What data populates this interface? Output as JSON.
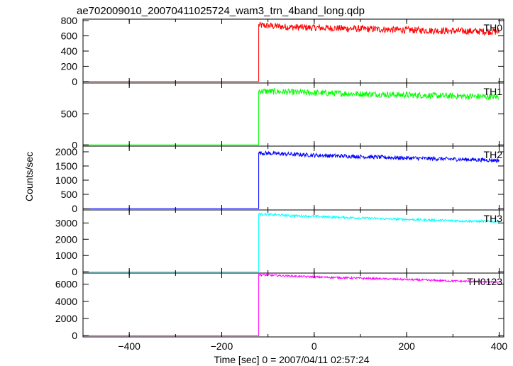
{
  "chart_data": {
    "type": "line",
    "title": "ae702009010_20070411025724_wam3_trn_4band_long.qdp",
    "xlabel": "Time [sec] 0 = 2007/04/11 02:57:24",
    "ylabel": "Counts/sec",
    "xlim": [
      -500,
      410
    ],
    "xticks": [
      -400,
      -200,
      0,
      200,
      400
    ],
    "grid": false,
    "legend": "none",
    "onset_time": -120,
    "t_start": -500,
    "t_end": 400,
    "panels": [
      {
        "name": "TH0",
        "color": "#ff0000",
        "ylim": [
          -20,
          820
        ],
        "yticks": [
          0,
          200,
          400,
          600,
          800
        ],
        "background_level": 0,
        "points": [
          {
            "x": -120,
            "y": 740
          },
          {
            "x": -50,
            "y": 715
          },
          {
            "x": 50,
            "y": 700
          },
          {
            "x": 150,
            "y": 685
          },
          {
            "x": 250,
            "y": 670
          },
          {
            "x": 350,
            "y": 660
          },
          {
            "x": 400,
            "y": 655
          }
        ],
        "noise": 45
      },
      {
        "name": "TH1",
        "color": "#00ff00",
        "ylim": [
          -20,
          1000
        ],
        "yticks": [
          0,
          500
        ],
        "background_level": 0,
        "points": [
          {
            "x": -120,
            "y": 870
          },
          {
            "x": 0,
            "y": 840
          },
          {
            "x": 100,
            "y": 825
          },
          {
            "x": 200,
            "y": 805
          },
          {
            "x": 300,
            "y": 790
          },
          {
            "x": 400,
            "y": 775
          }
        ],
        "noise": 50
      },
      {
        "name": "TH2",
        "color": "#0000ff",
        "ylim": [
          -50,
          2200
        ],
        "yticks": [
          0,
          500,
          1000,
          1500,
          2000
        ],
        "background_level": 0,
        "points": [
          {
            "x": -120,
            "y": 1960
          },
          {
            "x": 0,
            "y": 1880
          },
          {
            "x": 100,
            "y": 1830
          },
          {
            "x": 200,
            "y": 1780
          },
          {
            "x": 300,
            "y": 1740
          },
          {
            "x": 400,
            "y": 1700
          }
        ],
        "noise": 70
      },
      {
        "name": "TH3",
        "color": "#00ffff",
        "ylim": [
          -80,
          3800
        ],
        "yticks": [
          0,
          1000,
          2000,
          3000
        ],
        "background_level": 0,
        "points": [
          {
            "x": -120,
            "y": 3550
          },
          {
            "x": -50,
            "y": 3450
          },
          {
            "x": 50,
            "y": 3350
          },
          {
            "x": 150,
            "y": 3260
          },
          {
            "x": 250,
            "y": 3180
          },
          {
            "x": 350,
            "y": 3100
          },
          {
            "x": 400,
            "y": 3080
          }
        ],
        "noise": 70
      },
      {
        "name": "TH0123",
        "color": "#ff00ff",
        "ylim": [
          -150,
          7300
        ],
        "yticks": [
          0,
          2000,
          4000,
          6000
        ],
        "background_level": 0,
        "points": [
          {
            "x": -120,
            "y": 7100
          },
          {
            "x": 0,
            "y": 6850
          },
          {
            "x": 100,
            "y": 6700
          },
          {
            "x": 200,
            "y": 6550
          },
          {
            "x": 300,
            "y": 6380
          },
          {
            "x": 400,
            "y": 6250
          }
        ],
        "noise": 110
      }
    ]
  }
}
